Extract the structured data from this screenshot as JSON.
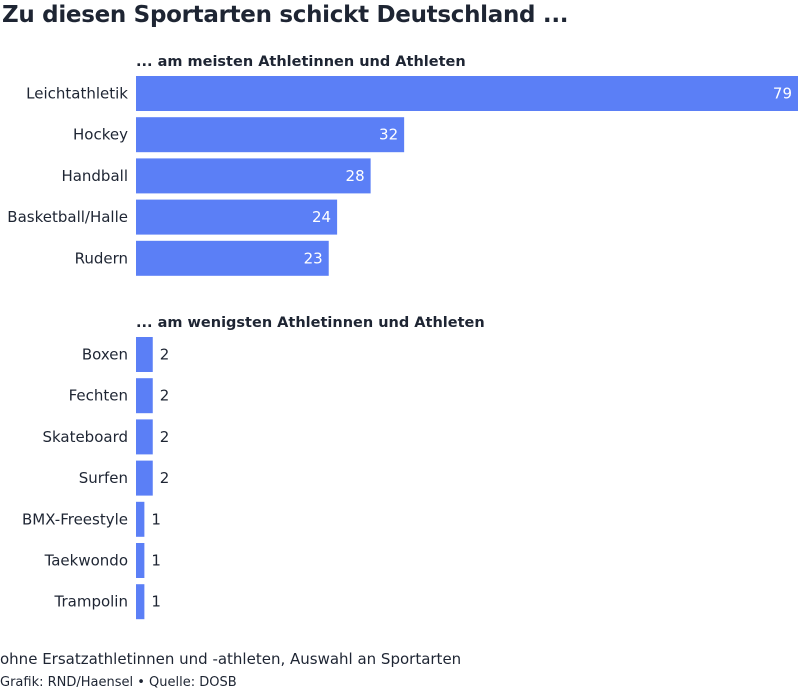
{
  "title": "Zu diesen Sportarten schickt Deutschland ...",
  "footer": {
    "note": "ohne Ersatzathletinnen und -athleten, Auswahl an Sportarten",
    "credits": "Grafik: RND/Haensel • Quelle: DOSB"
  },
  "colors": {
    "bar": "#5b7ff6",
    "text": "#1e2533",
    "value_inside": "#ffffff"
  },
  "chart_data": [
    {
      "type": "bar",
      "orientation": "horizontal",
      "subtitle": "... am meisten Athletinnen und Athleten",
      "categories": [
        "Leichtathletik",
        "Hockey",
        "Handball",
        "Basketball/Halle",
        "Rudern"
      ],
      "values": [
        79,
        32,
        28,
        24,
        23
      ],
      "xlim": [
        0,
        79
      ],
      "grid": false
    },
    {
      "type": "bar",
      "orientation": "horizontal",
      "subtitle": "... am wenigsten Athletinnen und Athleten",
      "categories": [
        "Boxen",
        "Fechten",
        "Skateboard",
        "Surfen",
        "BMX-Freestyle",
        "Taekwondo",
        "Trampolin"
      ],
      "values": [
        2,
        2,
        2,
        2,
        1,
        1,
        1
      ],
      "xlim": [
        0,
        79
      ],
      "grid": false
    }
  ]
}
